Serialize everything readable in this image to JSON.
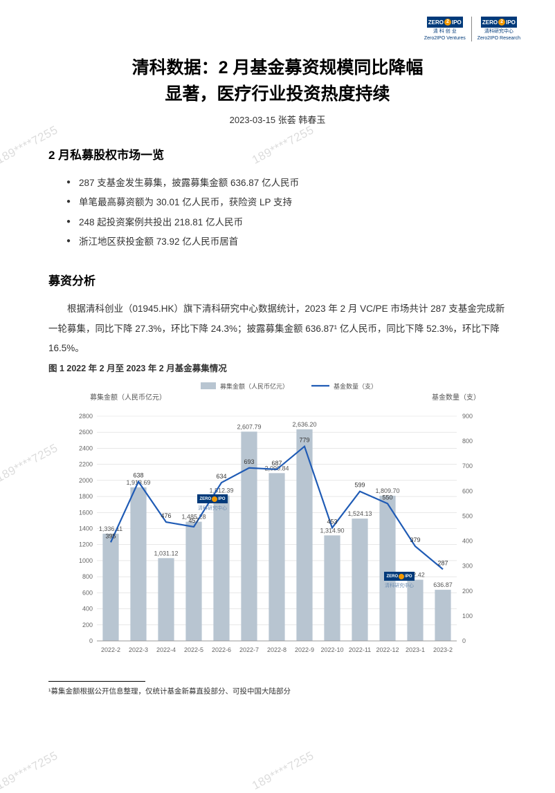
{
  "logos": {
    "left": {
      "text": "ZERO",
      "num": "2",
      "text2": "IPO",
      "sub1": "清 科 创 业",
      "sub2": "Zero2IPO Ventures"
    },
    "right": {
      "text": "ZERO",
      "num": "2",
      "text2": "IPO",
      "sub1": "清科研究中心",
      "sub2": "Zero2IPO Research"
    }
  },
  "title_line1": "清科数据：2 月基金募资规模同比降幅",
  "title_line2": "显著，医疗行业投资热度持续",
  "byline": "2023-03-15  张荟  韩春玉",
  "section1_head": "2 月私募股权市场一览",
  "bullets": [
    "287 支基金发生募集，披露募集金额 636.87 亿人民币",
    "单笔最高募资额为 30.01 亿人民币，获险资 LP 支持",
    "248 起投资案例共投出 218.81 亿人民币",
    "浙江地区获投金额 73.92 亿人民币居首"
  ],
  "section2_head": "募资分析",
  "body_para": "根据清科创业（01945.HK）旗下清科研究中心数据统计，2023 年 2 月 VC/PE 市场共计 287 支基金完成新一轮募集，同比下降 27.3%，环比下降 24.3%；披露募集金额 636.87¹ 亿人民币，同比下降 52.3%，环比下降 16.5%。",
  "chart_caption": "图 1 2022 年 2 月至 2023 年 2 月基金募集情况",
  "chart": {
    "type": "bar+line",
    "legend": {
      "bar": "募集金额（人民币亿元）",
      "line": "基金数量（支）"
    },
    "left_axis_label": "募集金额（人民币亿元）",
    "right_axis_label": "基金数量（支）",
    "categories": [
      "2022-2",
      "2022-3",
      "2022-4",
      "2022-5",
      "2022-6",
      "2022-7",
      "2022-8",
      "2022-9",
      "2022-10",
      "2022-11",
      "2022-12",
      "2023-1",
      "2023-2"
    ],
    "bar_values": [
      1336.11,
      1913.69,
      1031.12,
      1485.28,
      1812.39,
      2607.79,
      2090.84,
      2636.2,
      1314.9,
      1524.13,
      1809.7,
      762.42,
      636.87
    ],
    "bar_labels": [
      "1,336.11",
      "1,913.69",
      "1,031.12",
      "1,485.28",
      "1,812.39",
      "2,607.79",
      "2,090.84",
      "2,636.20",
      "1,314.90",
      "1,524.13",
      "1,809.70",
      "762.42",
      "636.87"
    ],
    "line_values": [
      395,
      638,
      476,
      457,
      634,
      693,
      687,
      779,
      453,
      599,
      550,
      379,
      287
    ],
    "line_labels": [
      "395",
      "638",
      "476",
      "457",
      "634",
      "693",
      "687",
      "779",
      "453",
      "599",
      "550",
      "379",
      "287"
    ],
    "y1_min": 0,
    "y1_max": 2800,
    "y1_step": 200,
    "y1_ticks": [
      0,
      200,
      400,
      600,
      800,
      1000,
      1200,
      1400,
      1600,
      1800,
      2000,
      2200,
      2400,
      2600,
      2800
    ],
    "y2_min": 0,
    "y2_max": 900,
    "y2_ticks": [
      0,
      100,
      200,
      300,
      400,
      500,
      600,
      700,
      800,
      900
    ],
    "bar_color": "#b8c5d1",
    "line_color": "#1f5bb5",
    "grid_color": "#d9d9d9",
    "axis_text_color": "#666666",
    "bar_width": 0.58,
    "label_fontsize": 9,
    "axis_fontsize": 9,
    "legend_fontsize": 9,
    "chart_watermark": "清科研究中心"
  },
  "footnote": "¹募集金额根据公开信息整理，仅统计基金新募直投部分、可投中国大陆部分",
  "watermark_text": "189****7255"
}
